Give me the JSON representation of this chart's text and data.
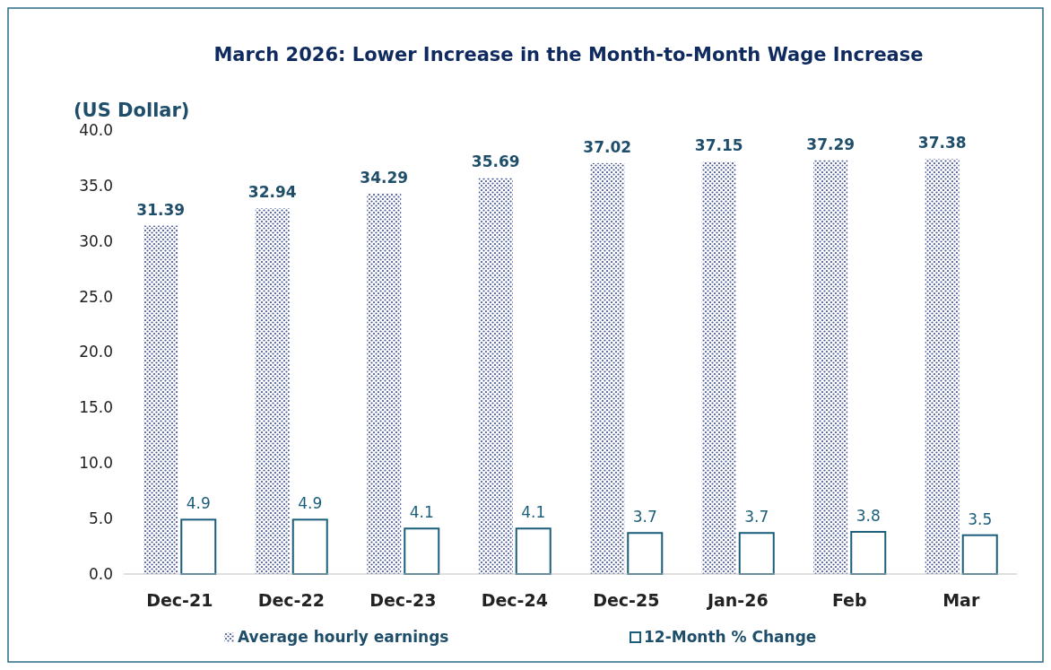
{
  "chart_data": {
    "type": "bar",
    "title": "March  2026:  Lower Increase in the Month-to-Month Wage Increase",
    "ylabel": "(US Dollar)",
    "categories": [
      "Dec-21",
      "Dec-22",
      "Dec-23",
      "Dec-24",
      "Dec-25",
      "Jan-26",
      "Feb",
      "Mar"
    ],
    "series": [
      {
        "name": "Average hourly earnings",
        "color": "#4a5a96",
        "values": [
          31.39,
          32.94,
          34.29,
          35.69,
          37.02,
          37.15,
          37.29,
          37.38
        ]
      },
      {
        "name": "12-Month % Change",
        "color": "#1b5e7b",
        "values": [
          4.9,
          4.9,
          4.1,
          4.1,
          3.7,
          3.7,
          3.8,
          3.5
        ]
      }
    ],
    "ylim": [
      0,
      40
    ],
    "yticks": [
      {
        "value": 0,
        "label": "0.0"
      },
      {
        "value": 5,
        "label": "5.0"
      },
      {
        "value": 10,
        "label": "10.0"
      },
      {
        "value": 15,
        "label": "15.0"
      },
      {
        "value": 20,
        "label": "20.0"
      },
      {
        "value": 25,
        "label": "25.0"
      },
      {
        "value": 30,
        "label": "30.0"
      },
      {
        "value": 35,
        "label": "35.0"
      },
      {
        "value": 40,
        "label": "40.0"
      }
    ],
    "grid": false,
    "legend": "bottom",
    "data_labels": true
  }
}
